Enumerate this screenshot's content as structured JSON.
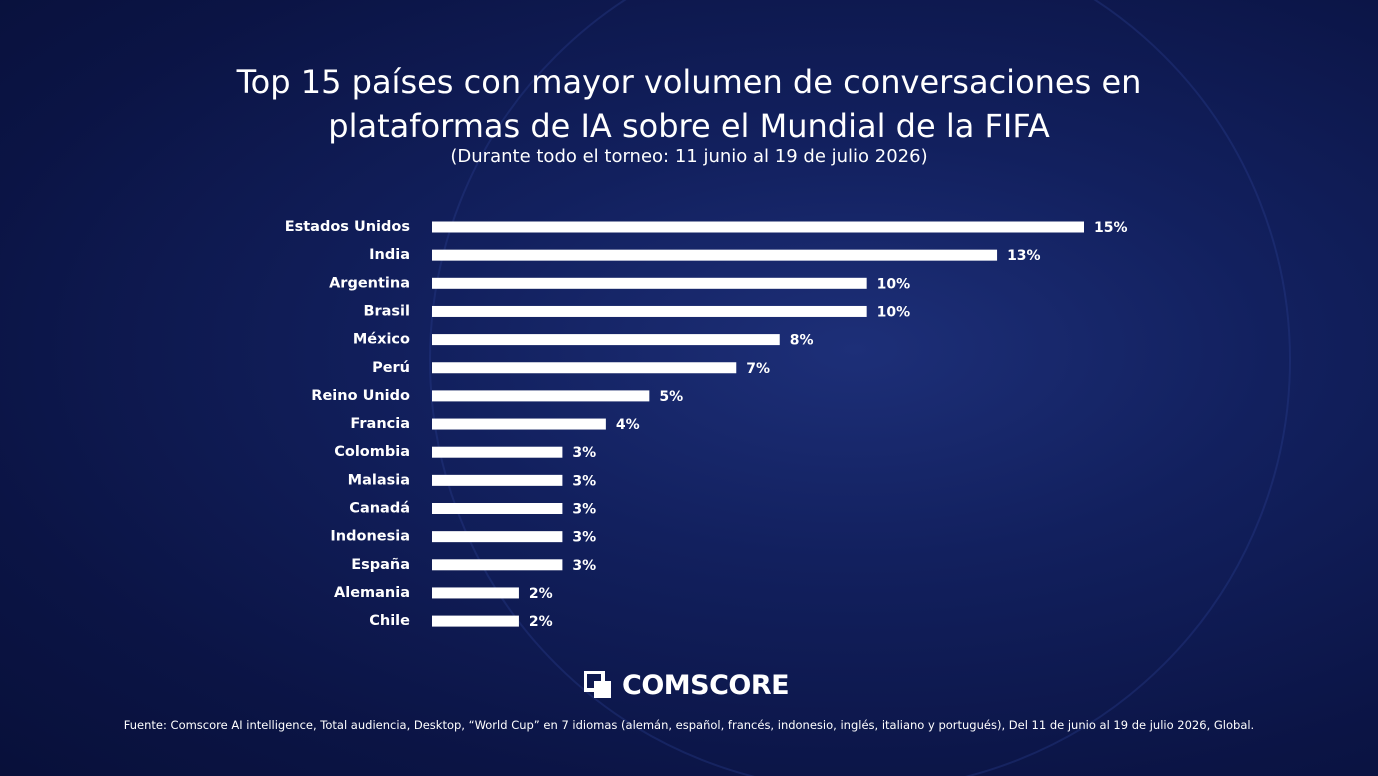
{
  "chart_data": {
    "type": "barh",
    "title": "Top 15 países con mayor volumen de conversaciones en plataformas de IA sobre el Mundial de la FIFA",
    "subtitle": "(Durante todo el torneo: 11 junio al 19 de julio 2026)",
    "categories": [
      "Estados Unidos",
      "India",
      "Argentina",
      "Brasil",
      "México",
      "Perú",
      "Reino Unido",
      "Francia",
      "Colombia",
      "Malasia",
      "Canadá",
      "Indonesia",
      "España",
      "Alemania",
      "Chile"
    ],
    "values": [
      15,
      13,
      10,
      10,
      8,
      7,
      5,
      4,
      3,
      3,
      3,
      3,
      3,
      2,
      2
    ],
    "value_labels": [
      "15%",
      "13%",
      "10%",
      "10%",
      "8%",
      "7%",
      "5%",
      "4%",
      "3%",
      "3%",
      "3%",
      "3%",
      "3%",
      "2%",
      "2%"
    ],
    "color": "#ffffff",
    "logo": "COMSCORE",
    "source": "Fuente: Comscore AI intelligence, Total audiencia, Desktop, “World Cup” en 7 idiomas (alemán, español, francés, indonesio, inglés, italiano y portugués), Del 11 de junio al 19 de julio 2026, Global."
  }
}
